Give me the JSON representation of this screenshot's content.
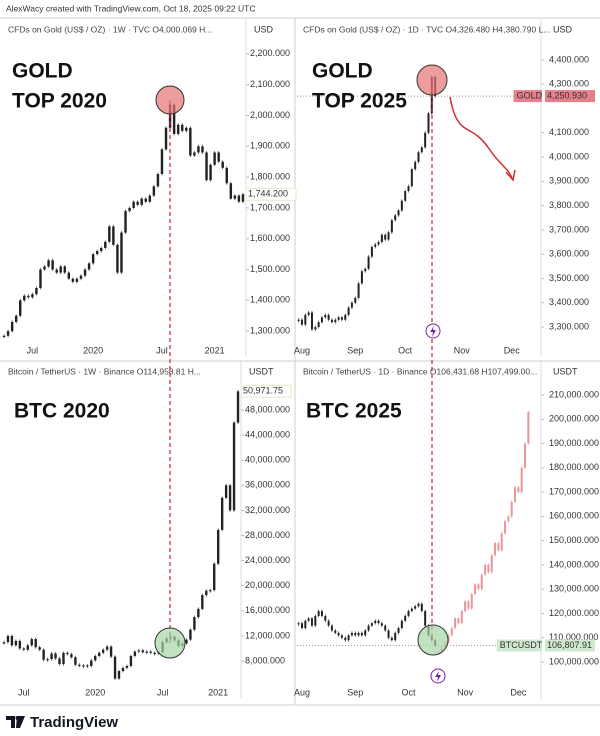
{
  "header": "AlexWacy created with TradingView.com, Oct 18, 2025 09:22 UTC",
  "footer": "TradingView",
  "chart_data": [
    {
      "type": "candlestick",
      "subtitle": "CFDs on Gold (US$ / OZ) · 1W · TVC  O4,000.069  H...",
      "ylabel": "USD",
      "annotations": [
        "GOLD",
        "TOP 2020"
      ],
      "categories": [
        null,
        null,
        null,
        null,
        null,
        null,
        null,
        "Jul",
        null,
        null,
        null,
        null,
        null,
        null,
        null,
        null,
        null,
        null,
        null,
        null,
        null,
        null,
        "2020",
        null,
        null,
        null,
        null,
        null,
        null,
        null,
        null,
        null,
        null,
        null,
        null,
        null,
        null,
        null,
        null,
        "Jul",
        null,
        null,
        null,
        null,
        null,
        null,
        null,
        null,
        null,
        null,
        null,
        null,
        "2021",
        null,
        null,
        null,
        null,
        null,
        null,
        null
      ],
      "series": [
        {
          "color": "#222222",
          "values": [
            1285,
            1300,
            1330,
            1350,
            1400,
            1415,
            1410,
            1420,
            1440,
            1500,
            1510,
            1530,
            1500,
            1490,
            1510,
            1490,
            1470,
            1460,
            1470,
            1480,
            1500,
            1520,
            1550,
            1560,
            1570,
            1590,
            1640,
            1580,
            1490,
            1620,
            1690,
            1700,
            1720,
            1710,
            1730,
            1720,
            1740,
            1770,
            1810,
            1890,
            1960,
            2035,
            1940,
            1970,
            1950,
            1960,
            1870,
            1880,
            1900,
            1880,
            1790,
            1840,
            1880,
            1850,
            1830,
            1780,
            1730,
            1740,
            1720,
            1744.2
          ]
        }
      ],
      "ylim": [
        1255,
        2245
      ],
      "yticks": [
        {
          "value": 2200,
          "label": "2,200.000"
        },
        {
          "value": 2100,
          "label": "2,100.000"
        },
        {
          "value": 2000,
          "label": "2,000.000"
        },
        {
          "value": 1900,
          "label": "1,900.000"
        },
        {
          "value": 1800,
          "label": "1,800.000"
        },
        {
          "value": 1700,
          "label": "1,700.000"
        },
        {
          "value": 1600,
          "label": "1,600.000"
        },
        {
          "value": 1500,
          "label": "1,500.000"
        },
        {
          "value": 1400,
          "label": "1,400.000"
        },
        {
          "value": 1300,
          "label": "1,300.000"
        }
      ],
      "last_label": {
        "value": 1744.2,
        "label": "1,744.200",
        "color": "#9ccc65",
        "background": "#ffffff"
      }
    },
    {
      "type": "candlestick",
      "subtitle": "CFDs on Gold (US$ / OZ) · 1D · TVC  O4,326.480  H4,380.790  L...",
      "ylabel": "USD",
      "annotations": [
        "GOLD",
        "TOP 2025"
      ],
      "categories": [
        null,
        "Aug",
        null,
        null,
        null,
        null,
        null,
        null,
        null,
        null,
        null,
        null,
        null,
        null,
        null,
        null,
        null,
        "Sep",
        null,
        null,
        null,
        null,
        null,
        null,
        null,
        null,
        null,
        null,
        null,
        null,
        null,
        null,
        "Oct",
        null,
        null,
        null,
        null,
        null,
        null,
        null,
        null,
        null,
        null,
        null,
        null,
        null,
        null,
        null,
        null,
        "Nov",
        null,
        null,
        null,
        null,
        null,
        null,
        null,
        null,
        null,
        null,
        null,
        null,
        null,
        null,
        "Dec",
        null,
        null,
        null,
        null,
        null,
        null,
        null,
        null
      ],
      "series": [
        {
          "color": "#222222",
          "values": [
            3330,
            3310,
            3350,
            3360,
            3290,
            3300,
            3320,
            3340,
            3350,
            3330,
            3320,
            3330,
            3340,
            3330,
            3350,
            3380,
            3400,
            3420,
            3480,
            3530,
            3540,
            3590,
            3630,
            3640,
            3650,
            3680,
            3660,
            3690,
            3740,
            3760,
            3780,
            3820,
            3860,
            3880,
            3950,
            3980,
            4020,
            4040,
            4100,
            4180,
            4330,
            4250.93,
            null,
            null,
            null,
            null,
            null,
            null,
            null,
            null,
            null,
            null,
            null,
            null,
            null,
            null,
            null,
            null,
            null,
            null,
            null,
            null,
            null,
            null,
            null,
            null,
            null,
            null,
            null,
            null,
            null,
            null,
            null
          ]
        }
      ],
      "ylim": [
        3226,
        4482
      ],
      "yticks": [
        {
          "value": 4400,
          "label": "4,400.000"
        },
        {
          "value": 4300,
          "label": "4,300.000"
        },
        {
          "value": 4100,
          "label": "4,100.000"
        },
        {
          "value": 4000,
          "label": "4,000.000"
        },
        {
          "value": 3900,
          "label": "3,900.000"
        },
        {
          "value": 3800,
          "label": "3,800.000"
        },
        {
          "value": 3700,
          "label": "3,700.000"
        },
        {
          "value": 3600,
          "label": "3,600.000"
        },
        {
          "value": 3500,
          "label": "3,500.000"
        },
        {
          "value": 3400,
          "label": "3,400.000"
        },
        {
          "value": 3300,
          "label": "3,300.000"
        }
      ],
      "last_label": {
        "tag": "GOLD",
        "value": 4250.93,
        "label": "4,250.930",
        "color": "#ffffff",
        "background": "#e57f8a"
      }
    },
    {
      "type": "candlestick",
      "subtitle": "Bitcoin / TetherUS · 1W · Binance  O114,958.81  H...",
      "ylabel": "USDT",
      "annotations": [
        "BTC 2020"
      ],
      "categories": [
        null,
        null,
        null,
        null,
        null,
        "Jul",
        null,
        null,
        null,
        null,
        null,
        null,
        null,
        null,
        null,
        null,
        null,
        null,
        null,
        null,
        null,
        null,
        null,
        "2020",
        null,
        null,
        null,
        null,
        null,
        null,
        null,
        null,
        null,
        null,
        null,
        null,
        null,
        null,
        null,
        null,
        "Jul",
        null,
        null,
        null,
        null,
        null,
        null,
        null,
        null,
        null,
        null,
        null,
        null,
        null,
        "2021",
        null,
        null,
        null,
        null,
        null
      ],
      "series": [
        {
          "color": "#222222",
          "values": [
            11000,
            12000,
            10500,
            11200,
            10000,
            9800,
            10500,
            11500,
            10200,
            9800,
            8200,
            8300,
            9200,
            8400,
            7500,
            9300,
            9100,
            8600,
            7400,
            7200,
            7300,
            7200,
            8100,
            8800,
            9300,
            9800,
            10300,
            8700,
            5200,
            6400,
            6900,
            7200,
            8800,
            9500,
            9700,
            9400,
            9500,
            9300,
            9200,
            9400,
            11000,
            11600,
            11900,
            11300,
            10400,
            10800,
            11400,
            13000,
            15000,
            16300,
            18500,
            19200,
            19300,
            23500,
            28900,
            34000,
            36000,
            32000,
            46000,
            50971.75
          ]
        }
      ],
      "ylim": [
        3380,
        52780
      ],
      "yticks": [
        {
          "value": 48000,
          "label": "48,000.000"
        },
        {
          "value": 44000,
          "label": "44,000.000"
        },
        {
          "value": 40000,
          "label": "40,000.000"
        },
        {
          "value": 36000,
          "label": "36,000.000"
        },
        {
          "value": 32000,
          "label": "32,000.000"
        },
        {
          "value": 28000,
          "label": "28,000.000"
        },
        {
          "value": 24000,
          "label": "24,000.000"
        },
        {
          "value": 20000,
          "label": "20,000.000"
        },
        {
          "value": 16000,
          "label": "16,000.000"
        },
        {
          "value": 12000,
          "label": "12,000.000"
        },
        {
          "value": 8000,
          "label": "8,000.000"
        }
      ],
      "last_label": {
        "value": 50971.75,
        "label": "50,971.75",
        "color": "#9ccc65",
        "background": "#ffffff"
      }
    },
    {
      "type": "candlestick",
      "subtitle": "Bitcoin / TetherUS · 1D · Binance  O106,431.68  H107,499.00...",
      "ylabel": "USDT",
      "annotations": [
        "BTC 2025"
      ],
      "categories": [
        null,
        "Aug",
        null,
        null,
        null,
        null,
        null,
        null,
        null,
        null,
        null,
        null,
        null,
        null,
        null,
        null,
        null,
        "Sep",
        null,
        null,
        null,
        null,
        null,
        null,
        null,
        null,
        null,
        null,
        null,
        null,
        null,
        null,
        null,
        "Oct",
        null,
        null,
        null,
        null,
        null,
        null,
        null,
        null,
        null,
        null,
        null,
        null,
        null,
        null,
        null,
        null,
        "Nov",
        null,
        null,
        null,
        null,
        null,
        null,
        null,
        null,
        null,
        null,
        null,
        null,
        null,
        null,
        null,
        "Dec",
        null,
        null,
        null,
        null,
        null,
        null
      ],
      "series": [
        {
          "color": "#222222",
          "values": [
            116000,
            114000,
            117000,
            118000,
            115000,
            119000,
            121000,
            119000,
            117000,
            115000,
            113000,
            112000,
            111000,
            110000,
            109000,
            111000,
            112000,
            111000,
            112000,
            111000,
            113000,
            115000,
            116000,
            117000,
            116000,
            115000,
            113000,
            110000,
            109000,
            112000,
            114000,
            117000,
            119000,
            121000,
            122000,
            123000,
            124000,
            121000,
            115000,
            111000,
            109000,
            106807.91,
            null,
            null,
            null,
            null,
            null,
            null,
            null,
            null,
            null,
            null,
            null,
            null,
            null,
            null,
            null,
            null,
            null,
            null,
            null,
            null,
            null,
            null,
            null,
            null,
            null,
            null,
            null,
            null,
            null,
            null,
            null
          ]
        },
        {
          "color": "#e8959b",
          "values": [
            null,
            null,
            null,
            null,
            null,
            null,
            null,
            null,
            null,
            null,
            null,
            null,
            null,
            null,
            null,
            null,
            null,
            null,
            null,
            null,
            null,
            null,
            null,
            null,
            null,
            null,
            null,
            null,
            null,
            null,
            null,
            null,
            null,
            null,
            null,
            null,
            null,
            null,
            null,
            null,
            null,
            null,
            104000,
            106000,
            108000,
            111000,
            114000,
            118000,
            116000,
            121000,
            125000,
            122000,
            128000,
            132000,
            130000,
            136000,
            140000,
            137000,
            144000,
            149000,
            146000,
            153000,
            158000,
            160000,
            166000,
            172000,
            170000,
            180000,
            190000,
            203000,
            null,
            null,
            null
          ]
        }
      ],
      "ylim": [
        88480,
        216170
      ],
      "yticks": [
        {
          "value": 210000,
          "label": "210,000.000"
        },
        {
          "value": 200000,
          "label": "200,000.000"
        },
        {
          "value": 190000,
          "label": "190,000.000"
        },
        {
          "value": 180000,
          "label": "180,000.000"
        },
        {
          "value": 170000,
          "label": "170,000.000"
        },
        {
          "value": 160000,
          "label": "160,000.000"
        },
        {
          "value": 150000,
          "label": "150,000.000"
        },
        {
          "value": 140000,
          "label": "140,000.000"
        },
        {
          "value": 130000,
          "label": "130,000.000"
        },
        {
          "value": 120000,
          "label": "120,000.000"
        },
        {
          "value": 110000,
          "label": "110,000.000"
        },
        {
          "value": 100000,
          "label": "100,000.000"
        }
      ],
      "last_label": {
        "tag": "BTCUSDT",
        "value": 106807.91,
        "label": "106,807.91",
        "color": "#1b3a1b",
        "background": "#cfe8cf"
      }
    }
  ]
}
